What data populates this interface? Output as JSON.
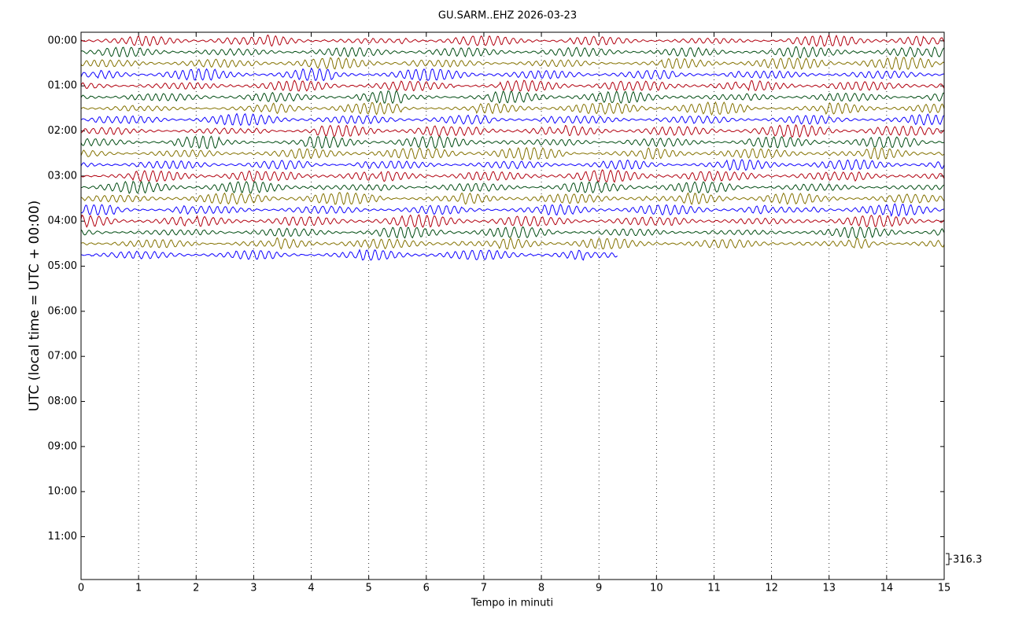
{
  "chart_data": {
    "type": "helicorder",
    "title": "GU.SARM..EHZ 2026-03-23",
    "x_label": "Tempo in minuti",
    "y_label": "UTC (local time = UTC + 00:00)",
    "xlim": [
      0,
      15
    ],
    "xticks": [
      0,
      1,
      2,
      3,
      4,
      5,
      6,
      7,
      8,
      9,
      10,
      11,
      12,
      13,
      14,
      15
    ],
    "ylim": [
      11.95,
      -0.19
    ],
    "yticks": [
      {
        "value": 0,
        "label": "00:00"
      },
      {
        "value": 1,
        "label": "01:00"
      },
      {
        "value": 2,
        "label": "02:00"
      },
      {
        "value": 3,
        "label": "03:00"
      },
      {
        "value": 4,
        "label": "04:00"
      },
      {
        "value": 5,
        "label": "05:00"
      },
      {
        "value": 6,
        "label": "06:00"
      },
      {
        "value": 7,
        "label": "07:00"
      },
      {
        "value": 8,
        "label": "08:00"
      },
      {
        "value": 9,
        "label": "09:00"
      },
      {
        "value": 10,
        "label": "10:00"
      },
      {
        "value": 11,
        "label": "11:00"
      }
    ],
    "grid": true,
    "scale": 316.3,
    "traces": [
      {
        "color": "#B2000F",
        "y": 0,
        "end": 15
      },
      {
        "color": "#004C12",
        "y": 0.25,
        "end": 15
      },
      {
        "color": "#847200",
        "y": 0.5,
        "end": 15
      },
      {
        "color": "#0E01FF",
        "y": 0.75,
        "end": 15
      },
      {
        "color": "#B2000F",
        "y": 1,
        "end": 15
      },
      {
        "color": "#004C12",
        "y": 1.25,
        "end": 15
      },
      {
        "color": "#847200",
        "y": 1.5,
        "end": 15
      },
      {
        "color": "#0E01FF",
        "y": 1.75,
        "end": 15
      },
      {
        "color": "#B2000F",
        "y": 2,
        "end": 15
      },
      {
        "color": "#004C12",
        "y": 2.25,
        "end": 15
      },
      {
        "color": "#847200",
        "y": 2.5,
        "end": 15
      },
      {
        "color": "#0E01FF",
        "y": 2.75,
        "end": 15
      },
      {
        "color": "#B2000F",
        "y": 3,
        "end": 15
      },
      {
        "color": "#004C12",
        "y": 3.25,
        "end": 15
      },
      {
        "color": "#847200",
        "y": 3.5,
        "end": 15
      },
      {
        "color": "#0E01FF",
        "y": 3.75,
        "end": 15
      },
      {
        "color": "#B2000F",
        "y": 4,
        "end": 15
      },
      {
        "color": "#004C12",
        "y": 4.25,
        "end": 15
      },
      {
        "color": "#847200",
        "y": 4.5,
        "end": 15
      },
      {
        "color": "#0E01FF",
        "y": 4.75,
        "end": 9.33
      }
    ]
  }
}
